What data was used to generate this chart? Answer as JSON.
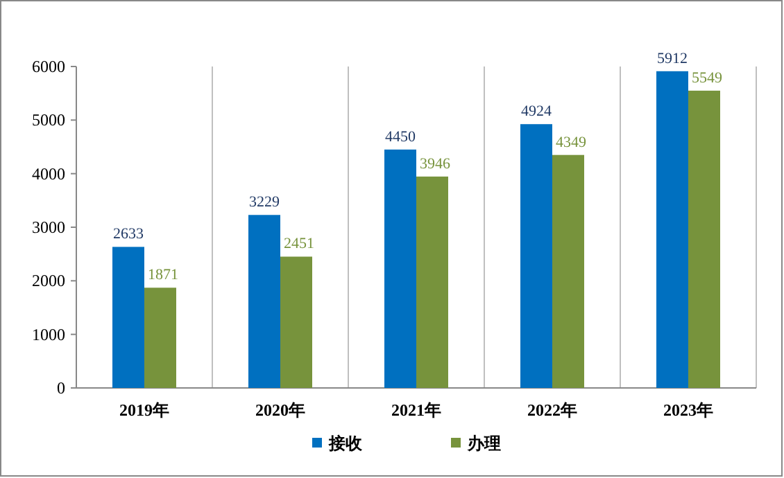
{
  "chart_data": {
    "type": "bar",
    "categories": [
      "2019年",
      "2020年",
      "2021年",
      "2022年",
      "2023年"
    ],
    "series": [
      {
        "name": "接收",
        "color": "#0070c0",
        "values": [
          2633,
          3229,
          4450,
          4924,
          5912
        ]
      },
      {
        "name": "办理",
        "color": "#77933c",
        "values": [
          1871,
          2451,
          3946,
          4349,
          5549
        ]
      }
    ],
    "ylim": [
      0,
      6000
    ],
    "yticks": [
      0,
      1000,
      2000,
      3000,
      4000,
      5000,
      6000
    ],
    "grid": "x",
    "legend": "bottom",
    "data_labels": true
  }
}
